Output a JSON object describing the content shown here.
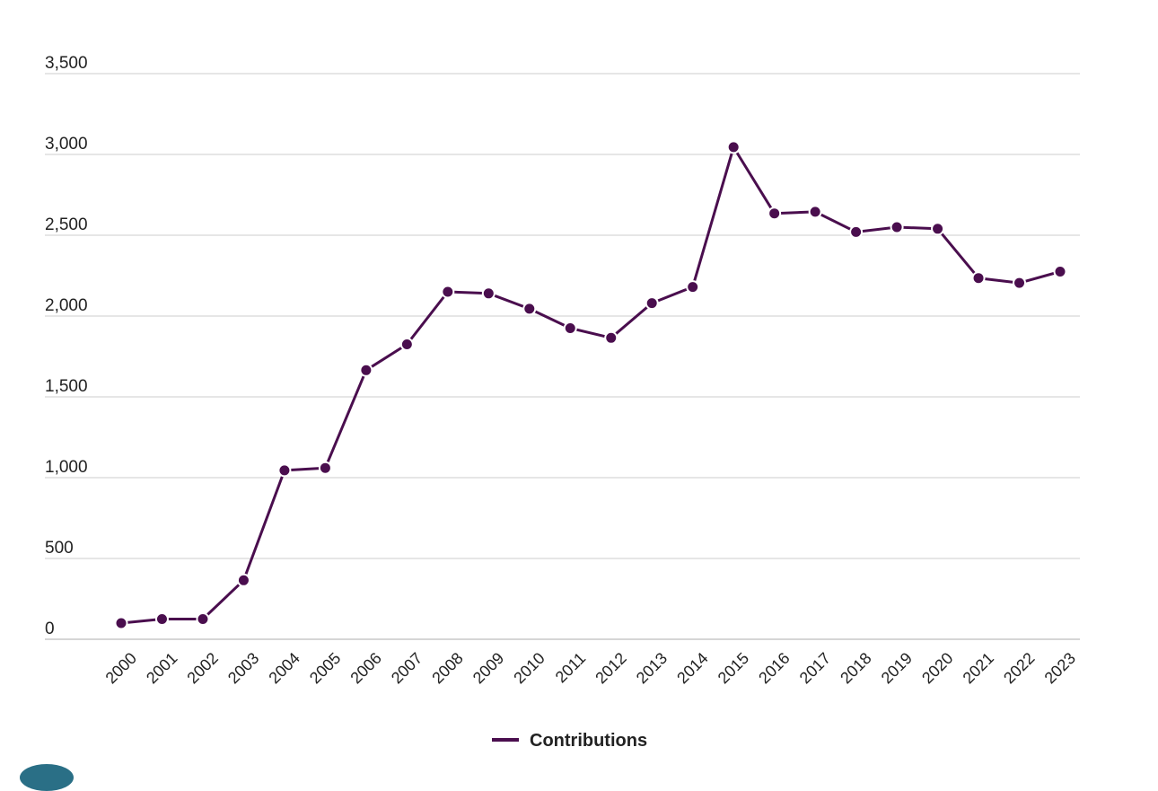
{
  "chart_data": {
    "type": "line",
    "title": "",
    "xlabel": "",
    "ylabel": "",
    "ylim": [
      0,
      3500
    ],
    "yticks": [
      0,
      500,
      1000,
      1500,
      2000,
      2500,
      3000,
      3500
    ],
    "ytick_labels": [
      "0",
      "500",
      "1,000",
      "1,500",
      "2,000",
      "2,500",
      "3,000",
      "3,500"
    ],
    "grid": true,
    "legend_position": "bottom-center",
    "categories": [
      "2000",
      "2001",
      "2002",
      "2003",
      "2004",
      "2005",
      "2006",
      "2007",
      "2008",
      "2009",
      "2010",
      "2011",
      "2012",
      "2013",
      "2014",
      "2015",
      "2016",
      "2017",
      "2018",
      "2019",
      "2020",
      "2021",
      "2022",
      "2023"
    ],
    "series": [
      {
        "name": "Contributions",
        "color": "#4a0e4e",
        "values": [
          100,
          125,
          125,
          365,
          1045,
          1060,
          1665,
          1825,
          2150,
          2140,
          2045,
          1925,
          1865,
          2080,
          2180,
          3045,
          2635,
          2645,
          2520,
          2550,
          2540,
          2235,
          2205,
          2275
        ]
      }
    ]
  }
}
